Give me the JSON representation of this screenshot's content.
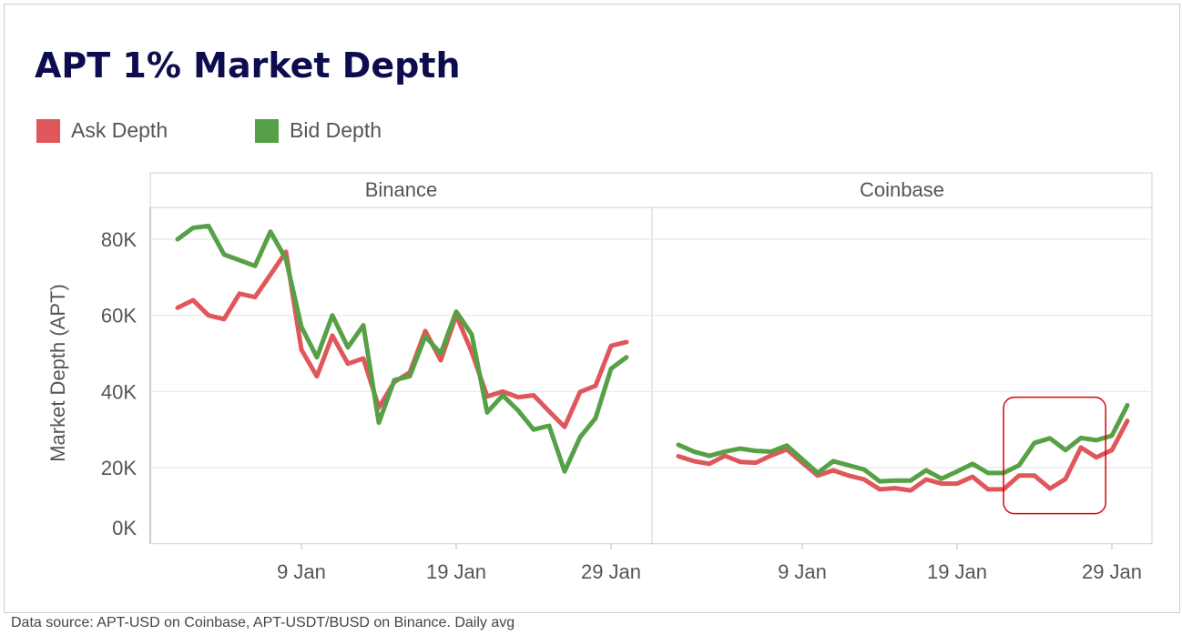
{
  "title": "APT 1% Market Depth",
  "footer": "Data source: APT-USD on Coinbase, APT-USDT/BUSD on Binance. Daily avg",
  "colors": {
    "ask": "#e0575b",
    "bid": "#56a046",
    "highlight": "#e00000"
  },
  "chart_data": {
    "type": "line",
    "title": "APT 1% Market Depth",
    "ylabel": "Market Depth (APT)",
    "ylim": [
      0,
      88000
    ],
    "yticks": [
      0,
      20000,
      40000,
      60000,
      80000
    ],
    "ytick_labels": [
      "0K",
      "20K",
      "40K",
      "60K",
      "80K"
    ],
    "xticks": [
      "9 Jan",
      "19 Jan",
      "29 Jan"
    ],
    "x": [
      "1 Jan",
      "2 Jan",
      "3 Jan",
      "4 Jan",
      "5 Jan",
      "6 Jan",
      "7 Jan",
      "8 Jan",
      "9 Jan",
      "10 Jan",
      "11 Jan",
      "12 Jan",
      "13 Jan",
      "14 Jan",
      "15 Jan",
      "16 Jan",
      "17 Jan",
      "18 Jan",
      "19 Jan",
      "20 Jan",
      "21 Jan",
      "22 Jan",
      "23 Jan",
      "24 Jan",
      "25 Jan",
      "26 Jan",
      "27 Jan",
      "28 Jan",
      "29 Jan",
      "30 Jan"
    ],
    "legend": [
      "Ask Depth",
      "Bid Depth"
    ],
    "legend_position": "top-left",
    "grid": true,
    "panels": [
      {
        "name": "Binance",
        "series": [
          {
            "name": "Ask Depth",
            "values": [
              62000,
              64000,
              60000,
              59000,
              65700,
              64800,
              70700,
              76700,
              51000,
              44000,
              54700,
              47300,
              48700,
              35800,
              42500,
              45000,
              55900,
              48200,
              60000,
              50400,
              38700,
              40000,
              38500,
              39000,
              34800,
              30700,
              39900,
              41500,
              52000,
              53000
            ]
          },
          {
            "name": "Bid Depth",
            "values": [
              80000,
              83000,
              83500,
              76000,
              74500,
              73000,
              82000,
              74800,
              57000,
              49000,
              60000,
              51600,
              57400,
              31800,
              43000,
              44000,
              54500,
              50000,
              61000,
              55000,
              34500,
              39000,
              35000,
              30000,
              31000,
              19000,
              28000,
              33000,
              46000,
              49000
            ]
          }
        ]
      },
      {
        "name": "Coinbase",
        "series": [
          {
            "name": "Ask Depth",
            "values": [
              23000,
              21700,
              21000,
              23100,
              21500,
              21300,
              23200,
              24800,
              21300,
              17900,
              19300,
              17900,
              16900,
              14300,
              14600,
              14000,
              16900,
              15800,
              15800,
              17600,
              14300,
              14300,
              17900,
              17900,
              14500,
              17000,
              25300,
              22700,
              24600,
              32300
            ]
          },
          {
            "name": "Bid Depth",
            "values": [
              26000,
              24200,
              23100,
              24200,
              25000,
              24400,
              24200,
              25800,
              22200,
              18600,
              21700,
              20600,
              19500,
              16400,
              16600,
              16600,
              19300,
              17100,
              19000,
              21000,
              18600,
              18600,
              20600,
              26500,
              27700,
              24600,
              27800,
              27200,
              28400,
              36400
            ]
          }
        ],
        "annotation": {
          "type": "highlight-box",
          "x_range": [
            "22 Jan",
            "28.6 Jan"
          ],
          "y_range": [
            7900,
            38500
          ]
        }
      }
    ]
  }
}
